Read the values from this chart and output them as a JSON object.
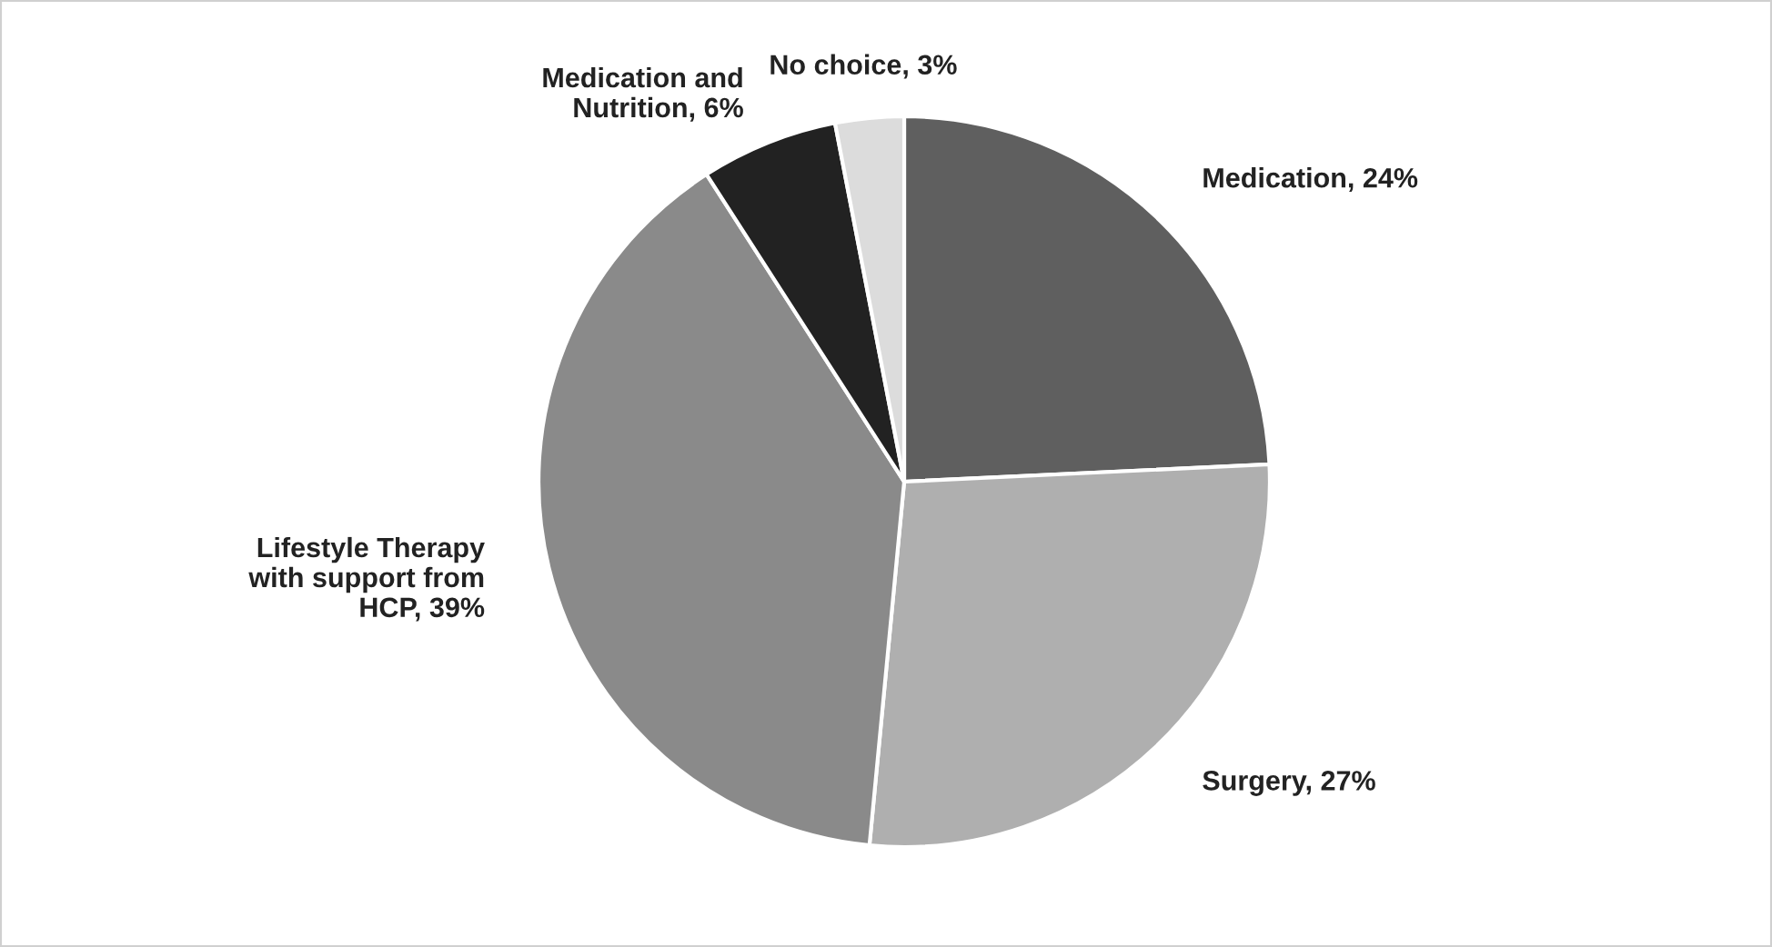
{
  "chart_data": {
    "type": "pie",
    "categories": [
      "Medication",
      "Surgery",
      "Lifestyle Therapy\nwith support from\nHCP",
      "Medication and\nNutrition",
      "No choice"
    ],
    "values": [
      24,
      27,
      39,
      6,
      3
    ],
    "colors": [
      "#5f5f5f",
      "#afafaf",
      "#8a8a8a",
      "#222222",
      "#dcdcdc"
    ],
    "value_labels": [
      "24%",
      "27%",
      "39%",
      "6%",
      "3%"
    ],
    "legend": false
  }
}
